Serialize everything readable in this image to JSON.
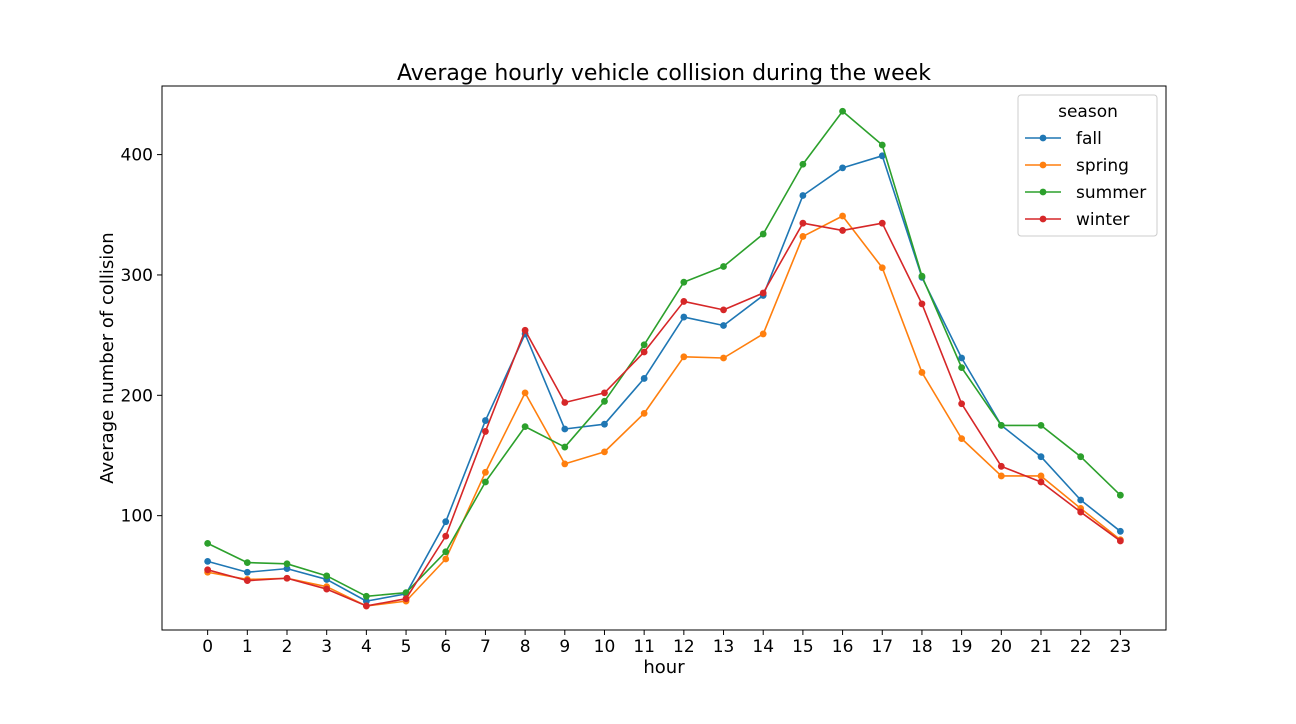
{
  "chart_data": {
    "type": "line",
    "title": "Average hourly vehicle collision during the week",
    "xlabel": "hour",
    "ylabel": "Average number of collision",
    "x": [
      0,
      1,
      2,
      3,
      4,
      5,
      6,
      7,
      8,
      9,
      10,
      11,
      12,
      13,
      14,
      15,
      16,
      17,
      18,
      19,
      20,
      21,
      22,
      23
    ],
    "xticks": [
      "0",
      "1",
      "2",
      "3",
      "4",
      "5",
      "6",
      "7",
      "8",
      "9",
      "10",
      "11",
      "12",
      "13",
      "14",
      "15",
      "16",
      "17",
      "18",
      "19",
      "20",
      "21",
      "22",
      "23"
    ],
    "yticks": [
      100,
      200,
      300,
      400
    ],
    "ylim": [
      5,
      457
    ],
    "xlim": [
      -1.15,
      24.15
    ],
    "grid": false,
    "legend": {
      "title": "season",
      "position": "top-right"
    },
    "series": [
      {
        "name": "fall",
        "color": "#1f77b4",
        "values": [
          62,
          53,
          56,
          47,
          29,
          35,
          95,
          179,
          251,
          172,
          176,
          214,
          265,
          258,
          283,
          366,
          389,
          399,
          298,
          231,
          175,
          149,
          113,
          87
        ]
      },
      {
        "name": "spring",
        "color": "#ff7f0e",
        "values": [
          53,
          47,
          48,
          41,
          25,
          29,
          64,
          136,
          202,
          143,
          153,
          185,
          232,
          231,
          251,
          332,
          349,
          306,
          219,
          164,
          133,
          133,
          106,
          80
        ]
      },
      {
        "name": "summer",
        "color": "#2ca02c",
        "values": [
          77,
          61,
          60,
          50,
          33,
          36,
          70,
          128,
          174,
          157,
          195,
          242,
          294,
          307,
          334,
          392,
          436,
          408,
          299,
          223,
          175,
          175,
          149,
          117
        ]
      },
      {
        "name": "winter",
        "color": "#d62728",
        "values": [
          55,
          46,
          48,
          39,
          25,
          31,
          83,
          170,
          254,
          194,
          202,
          236,
          278,
          271,
          285,
          343,
          337,
          343,
          276,
          193,
          141,
          128,
          103,
          79
        ]
      }
    ]
  }
}
